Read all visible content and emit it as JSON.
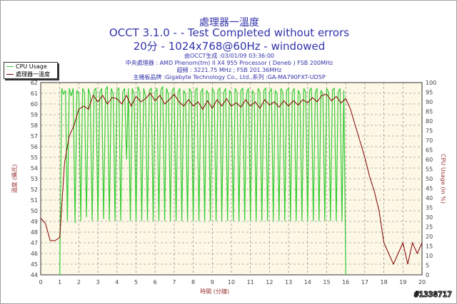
{
  "header": {
    "title1": "處理器一溫度",
    "title2": "OCCT 3.1.0 -  - Test Completed without errors",
    "title3": "20分 - 1024x768@60Hz - windowed",
    "info": [
      "由OCCT生成 :03/01/09 03:36:00",
      "中央處理器 : AMD Phenom(tm) II X4 955 Processor ( Deneb ) FSB 200MHz",
      "超頻 : 3221.75 MHz ; FSB 201.36MHz",
      "主機板品牌 :Gigabyte Technology Co., Ltd.,系列 :GA-MA790FXT-UD5P"
    ]
  },
  "watermark": "#1338717",
  "colors": {
    "cpu": "#33cc33",
    "temp": "#800000",
    "plot_bg": "#fdf7e6",
    "text": "#3333aa",
    "axis_label": "#993333"
  },
  "chart_data": {
    "type": "line",
    "xlabel": "時間 (分鐘)",
    "ylabel_left": "溫度 (攝氏)",
    "ylabel_right": "CPU Usage (in %)",
    "xlim": [
      0,
      20
    ],
    "ylim_left": [
      44,
      62
    ],
    "ylim_right": [
      0,
      100
    ],
    "x_ticks": [
      0,
      1,
      2,
      3,
      4,
      5,
      6,
      7,
      8,
      9,
      10,
      11,
      12,
      13,
      14,
      15,
      16,
      17,
      18,
      19,
      20
    ],
    "y_ticks_left": [
      44,
      45,
      46,
      47,
      48,
      49,
      50,
      51,
      52,
      53,
      54,
      55,
      56,
      57,
      58,
      59,
      60,
      61,
      62
    ],
    "y_ticks_right": [
      0,
      5,
      10,
      15,
      20,
      25,
      30,
      35,
      40,
      45,
      50,
      55,
      60,
      65,
      70,
      75,
      80,
      85,
      90,
      95,
      100
    ],
    "grid": true,
    "legend_position": "top-left",
    "series": [
      {
        "name": "CPU Usage",
        "axis": "right",
        "x": [
          1.0,
          1.1,
          1.2,
          1.3,
          1.4,
          1.5,
          1.6,
          1.7,
          1.8,
          1.9,
          2.0,
          2.1,
          2.2,
          2.3,
          2.4,
          2.5,
          2.6,
          2.7,
          2.8,
          2.9,
          3.0,
          3.1,
          3.2,
          3.3,
          3.4,
          3.5,
          3.6,
          3.7,
          3.8,
          3.9,
          4.0,
          4.1,
          4.2,
          4.3,
          4.4,
          4.5,
          4.6,
          4.7,
          4.8,
          4.9,
          5.0,
          5.1,
          5.2,
          5.3,
          5.4,
          5.5,
          5.6,
          5.7,
          5.8,
          5.9,
          6.0,
          6.1,
          6.2,
          6.3,
          6.4,
          6.5,
          6.6,
          6.7,
          6.8,
          6.9,
          7.0,
          7.1,
          7.2,
          7.3,
          7.4,
          7.5,
          7.6,
          7.7,
          7.8,
          7.9,
          8.0,
          8.1,
          8.2,
          8.3,
          8.4,
          8.5,
          8.6,
          8.7,
          8.8,
          8.9,
          9.0,
          9.1,
          9.2,
          9.3,
          9.4,
          9.5,
          9.6,
          9.7,
          9.8,
          9.9,
          10.0,
          10.1,
          10.2,
          10.3,
          10.4,
          10.5,
          10.6,
          10.7,
          10.8,
          10.9,
          11.0,
          11.1,
          11.2,
          11.3,
          11.4,
          11.5,
          11.6,
          11.7,
          11.8,
          11.9,
          12.0,
          12.1,
          12.2,
          12.3,
          12.4,
          12.5,
          12.6,
          12.7,
          12.8,
          12.9,
          13.0,
          13.1,
          13.2,
          13.3,
          13.4,
          13.5,
          13.6,
          13.7,
          13.8,
          13.9,
          14.0,
          14.1,
          14.2,
          14.3,
          14.4,
          14.5,
          14.6,
          14.7,
          14.8,
          14.9,
          15.0,
          15.1,
          15.2,
          15.3,
          15.4,
          15.5,
          15.6,
          15.7,
          15.8,
          15.9,
          16.0
        ],
        "y": [
          0,
          97,
          94,
          96,
          28,
          97,
          93,
          97,
          27,
          96,
          94,
          28,
          97,
          95,
          30,
          97,
          93,
          28,
          96,
          97,
          28,
          95,
          97,
          29,
          96,
          98,
          28,
          97,
          94,
          28,
          96,
          97,
          28,
          95,
          97,
          60,
          97,
          28,
          97,
          94,
          28,
          98,
          95,
          28,
          97,
          93,
          28,
          96,
          97,
          28,
          95,
          97,
          28,
          96,
          98,
          28,
          97,
          94,
          28,
          96,
          97,
          28,
          95,
          97,
          28,
          96,
          94,
          28,
          97,
          95,
          28,
          96,
          97,
          28,
          95,
          97,
          28,
          96,
          94,
          28,
          97,
          95,
          28,
          96,
          97,
          28,
          95,
          97,
          28,
          96,
          94,
          28,
          97,
          95,
          28,
          96,
          97,
          28,
          95,
          97,
          28,
          96,
          94,
          28,
          97,
          95,
          28,
          96,
          97,
          28,
          95,
          97,
          28,
          96,
          94,
          28,
          97,
          95,
          28,
          96,
          97,
          28,
          95,
          97,
          28,
          96,
          94,
          28,
          97,
          95,
          28,
          96,
          97,
          28,
          95,
          97,
          28,
          96,
          94,
          28,
          97,
          95,
          28,
          96,
          97,
          28,
          95,
          97,
          28,
          96,
          0
        ]
      },
      {
        "name": "處理器一溫度",
        "axis": "left",
        "x": [
          0,
          0.25,
          0.5,
          0.75,
          1,
          1.25,
          1.5,
          1.75,
          2,
          2.25,
          2.5,
          2.75,
          3,
          3.25,
          3.5,
          3.75,
          4,
          4.25,
          4.5,
          4.75,
          5,
          5.25,
          5.5,
          5.75,
          6,
          6.25,
          6.5,
          6.75,
          7,
          7.25,
          7.5,
          7.75,
          8,
          8.25,
          8.5,
          8.75,
          9,
          9.25,
          9.5,
          9.75,
          10,
          10.25,
          10.5,
          10.75,
          11,
          11.25,
          11.5,
          11.75,
          12,
          12.25,
          12.5,
          12.75,
          13,
          13.25,
          13.5,
          13.75,
          14,
          14.25,
          14.5,
          14.75,
          15,
          15.25,
          15.5,
          15.75,
          16,
          16.25,
          16.5,
          16.75,
          17,
          17.25,
          17.5,
          17.75,
          18,
          18.25,
          18.5,
          18.75,
          19,
          19.25,
          19.5,
          19.75,
          20
        ],
        "y": [
          49.3,
          48.8,
          47.2,
          47.2,
          47.5,
          54.5,
          57,
          58,
          59.5,
          59.8,
          59.5,
          60.8,
          60.2,
          60.8,
          60,
          60.6,
          60.5,
          60,
          60.8,
          59.8,
          60.7,
          60.2,
          60.5,
          61,
          60.3,
          60.8,
          60,
          60.4,
          60.9,
          60.2,
          59.8,
          60.4,
          59.8,
          60.2,
          59.5,
          60.3,
          59.6,
          60.4,
          59.8,
          60.5,
          59.8,
          60.1,
          59.7,
          60.4,
          59.8,
          60.2,
          59.6,
          60.4,
          59.9,
          60.2,
          59.7,
          60.3,
          59.8,
          60.3,
          59.9,
          60.4,
          60.1,
          60.6,
          60.2,
          60.8,
          60.9,
          60.3,
          60.7,
          60.1,
          60.5,
          59.5,
          58,
          56.5,
          55,
          53.2,
          51.8,
          50,
          47,
          46,
          45,
          46,
          47,
          45,
          47,
          46,
          47
        ]
      }
    ]
  }
}
